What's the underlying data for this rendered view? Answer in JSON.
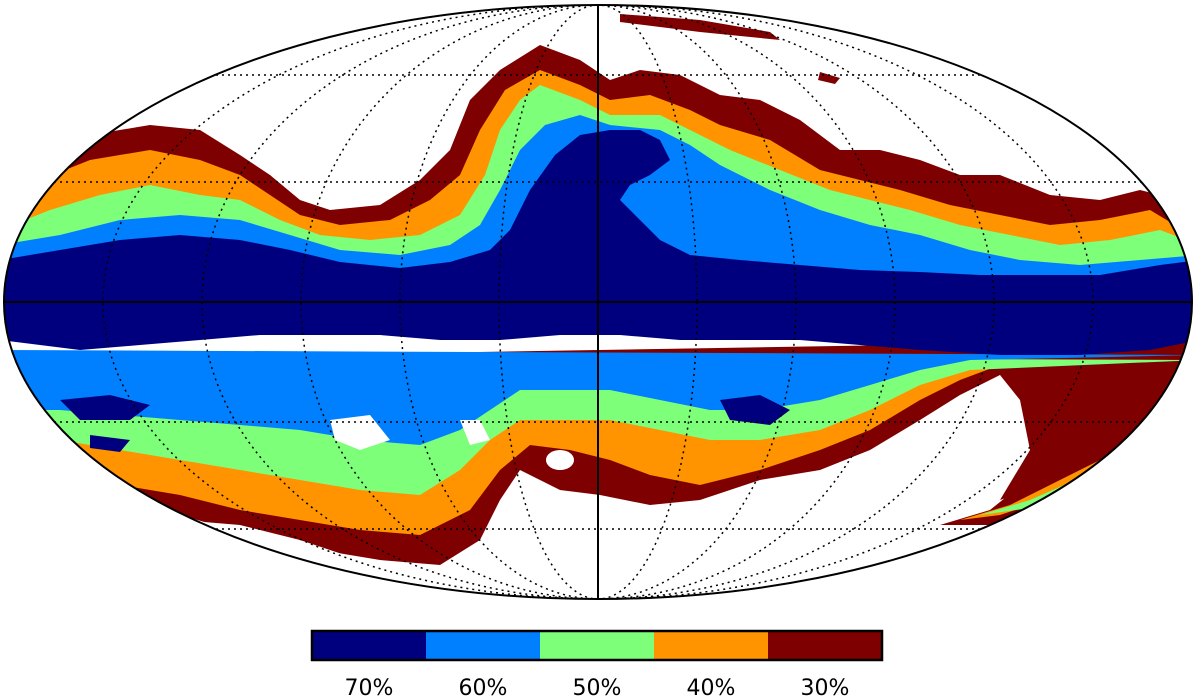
{
  "figure": {
    "type": "mollweide-sky-map",
    "background_color": "#ffffff",
    "frame_color": "#000000",
    "grid": true,
    "grid_style": "dotted"
  },
  "colorbar": {
    "placement": "bottom",
    "bins": [
      {
        "label": "70%",
        "color": "#00007f"
      },
      {
        "label": "60%",
        "color": "#0080ff"
      },
      {
        "label": "50%",
        "color": "#7dff7a"
      },
      {
        "label": "40%",
        "color": "#ff9400"
      },
      {
        "label": "30%",
        "color": "#7f0000"
      }
    ]
  }
}
